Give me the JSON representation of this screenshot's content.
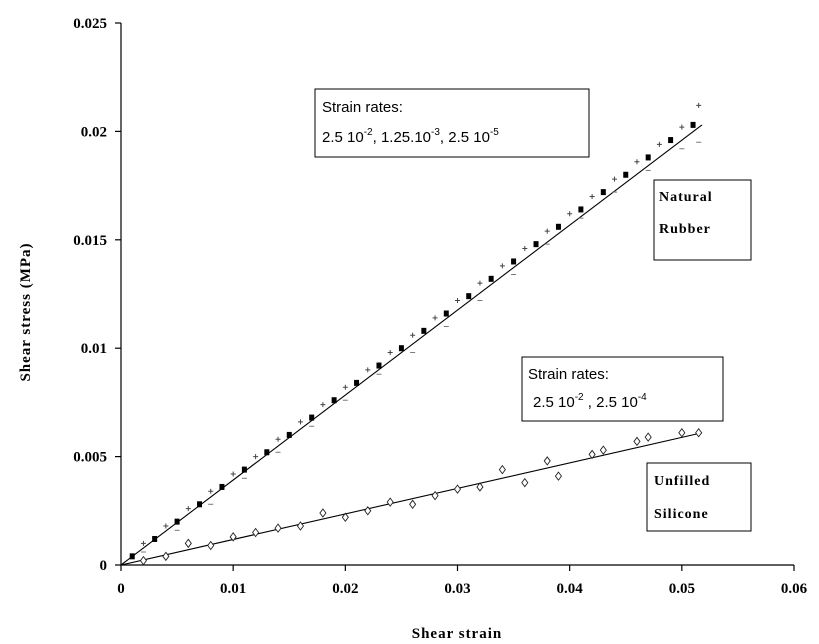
{
  "chart_data": {
    "type": "scatter",
    "xlabel": "Shear strain",
    "ylabel": "Shear stress (MPa)",
    "xlim": [
      0,
      0.06
    ],
    "ylim": [
      0,
      0.025
    ],
    "x_ticks": [
      "0",
      "0.01",
      "0.02",
      "0.03",
      "0.04",
      "0.05",
      "0.06"
    ],
    "y_ticks": [
      "0",
      "0.005",
      "0.01",
      "0.015",
      "0.02",
      "0.025"
    ],
    "grid": false,
    "series": [
      {
        "material": "Natural Rubber",
        "rate": "2.5 10-2",
        "marker": "filled-square",
        "x": [
          0.001,
          0.003,
          0.005,
          0.007,
          0.009,
          0.011,
          0.013,
          0.015,
          0.017,
          0.019,
          0.021,
          0.023,
          0.025,
          0.027,
          0.029,
          0.031,
          0.033,
          0.035,
          0.037,
          0.039,
          0.041,
          0.043,
          0.045,
          0.047,
          0.049,
          0.051
        ],
        "y": [
          0.0004,
          0.0012,
          0.002,
          0.0028,
          0.0036,
          0.0044,
          0.0052,
          0.006,
          0.0068,
          0.0076,
          0.0084,
          0.0092,
          0.01,
          0.0108,
          0.0116,
          0.0124,
          0.0132,
          0.014,
          0.0148,
          0.0156,
          0.0164,
          0.0172,
          0.018,
          0.0188,
          0.0196,
          0.0203
        ]
      },
      {
        "material": "Natural Rubber",
        "rate": "1.25.10-3",
        "marker": "plus",
        "x": [
          0.002,
          0.004,
          0.006,
          0.008,
          0.01,
          0.012,
          0.014,
          0.016,
          0.018,
          0.02,
          0.022,
          0.024,
          0.026,
          0.028,
          0.03,
          0.032,
          0.034,
          0.036,
          0.038,
          0.04,
          0.042,
          0.044,
          0.046,
          0.048,
          0.05,
          0.0515
        ],
        "y": [
          0.001,
          0.0018,
          0.0026,
          0.0034,
          0.0042,
          0.005,
          0.0058,
          0.0066,
          0.0074,
          0.0082,
          0.009,
          0.0098,
          0.0106,
          0.0114,
          0.0122,
          0.013,
          0.0138,
          0.0146,
          0.0154,
          0.0162,
          0.017,
          0.0178,
          0.0186,
          0.0194,
          0.0202,
          0.0212
        ]
      },
      {
        "material": "Natural Rubber",
        "rate": "2.5 10-5",
        "marker": "dash",
        "x": [
          0.002,
          0.005,
          0.008,
          0.011,
          0.014,
          0.017,
          0.02,
          0.023,
          0.026,
          0.029,
          0.032,
          0.035,
          0.038,
          0.041,
          0.044,
          0.047,
          0.05,
          0.0515
        ],
        "y": [
          0.0006,
          0.0016,
          0.0028,
          0.004,
          0.0052,
          0.0064,
          0.0076,
          0.0088,
          0.0098,
          0.011,
          0.0122,
          0.0134,
          0.0148,
          0.016,
          0.0172,
          0.0182,
          0.0192,
          0.0195
        ]
      },
      {
        "material": "Unfilled Silicone",
        "rate": "2.5 10-2",
        "marker": "open-diamond",
        "x": [
          0.002,
          0.006,
          0.01,
          0.014,
          0.018,
          0.022,
          0.026,
          0.03,
          0.034,
          0.038,
          0.042,
          0.046,
          0.05
        ],
        "y": [
          0.0002,
          0.001,
          0.0013,
          0.0017,
          0.0024,
          0.0025,
          0.0028,
          0.0035,
          0.0044,
          0.0048,
          0.0051,
          0.0057,
          0.0061
        ]
      },
      {
        "material": "Unfilled Silicone",
        "rate": "2.5 10-4",
        "marker": "open-diamond",
        "x": [
          0.004,
          0.008,
          0.012,
          0.016,
          0.02,
          0.024,
          0.028,
          0.032,
          0.036,
          0.039,
          0.043,
          0.047,
          0.0515
        ],
        "y": [
          0.0004,
          0.0009,
          0.0015,
          0.0018,
          0.0022,
          0.0029,
          0.0032,
          0.0036,
          0.0038,
          0.0041,
          0.0053,
          0.0059,
          0.0061
        ]
      }
    ],
    "fit_lines": [
      {
        "material": "Natural Rubber",
        "x": [
          0,
          0.0518
        ],
        "y": [
          0,
          0.0203
        ]
      },
      {
        "material": "Unfilled Silicone",
        "x": [
          0,
          0.0518
        ],
        "y": [
          0,
          0.0061
        ]
      }
    ],
    "annotations": {
      "nr_rates_label": "Strain rates:",
      "nr_rates_values": [
        "2.5 10",
        "-2",
        ", 1.25.10",
        "-3",
        ", 2.5 10",
        "-5"
      ],
      "si_rates_label": "Strain rates:",
      "si_rates_values": [
        "2.5 10",
        "-2",
        " , 2.5 10",
        "-4"
      ],
      "nr_material": [
        "Natural",
        "Rubber"
      ],
      "si_material": [
        "Unfilled",
        "Silicone"
      ]
    }
  }
}
